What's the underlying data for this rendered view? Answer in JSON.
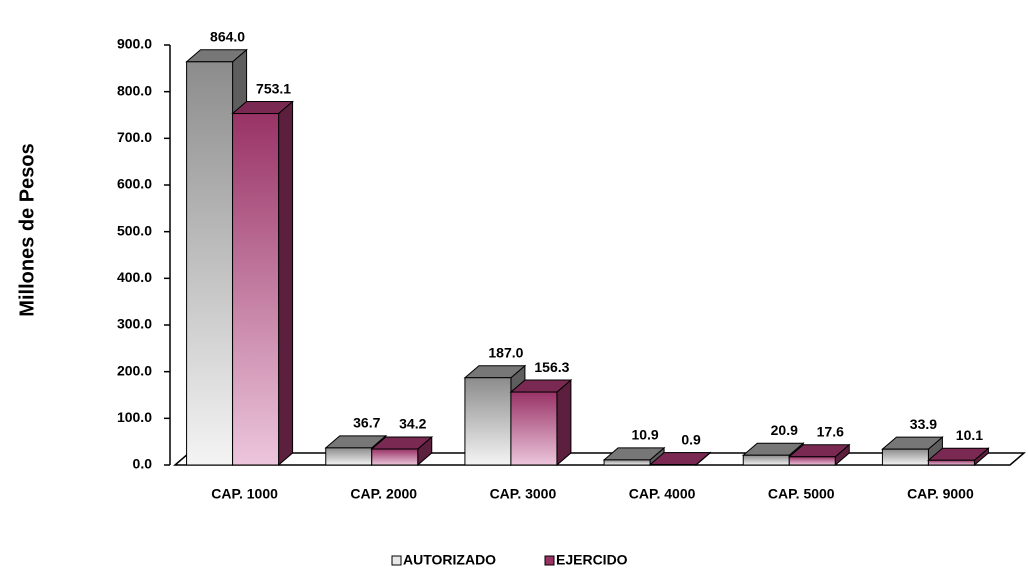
{
  "chart_data": {
    "type": "bar3d",
    "y_label": "Millones de Pesos",
    "categories": [
      "CAP. 1000",
      "CAP. 2000",
      "CAP. 3000",
      "CAP. 4000",
      "CAP. 5000",
      "CAP. 9000"
    ],
    "series": [
      {
        "name": "AUTORIZADO",
        "color": "#8c8c8c",
        "values": [
          864.0,
          36.7,
          187.0,
          10.9,
          20.9,
          33.9
        ],
        "value_labels": [
          "864.0",
          "36.7",
          "187.0",
          "10.9",
          "20.9",
          "33.9"
        ]
      },
      {
        "name": "EJERCIDO",
        "color": "#993366",
        "values": [
          753.1,
          34.2,
          156.3,
          0.9,
          17.6,
          10.1
        ],
        "value_labels": [
          "753.1",
          "34.2",
          "156.3",
          "0.9",
          "17.6",
          "10.1"
        ]
      }
    ],
    "ylim": [
      0,
      900
    ],
    "yticks": [
      {
        "value": 0,
        "label": "0.0"
      },
      {
        "value": 100,
        "label": "100.0"
      },
      {
        "value": 200,
        "label": "200.0"
      },
      {
        "value": 300,
        "label": "300.0"
      },
      {
        "value": 400,
        "label": "400.0"
      },
      {
        "value": 500,
        "label": "500.0"
      },
      {
        "value": 600,
        "label": "600.0"
      },
      {
        "value": 700,
        "label": "700.0"
      },
      {
        "value": 800,
        "label": "800.0"
      },
      {
        "value": 900,
        "label": "900.0"
      }
    ],
    "legend": "bottom"
  }
}
